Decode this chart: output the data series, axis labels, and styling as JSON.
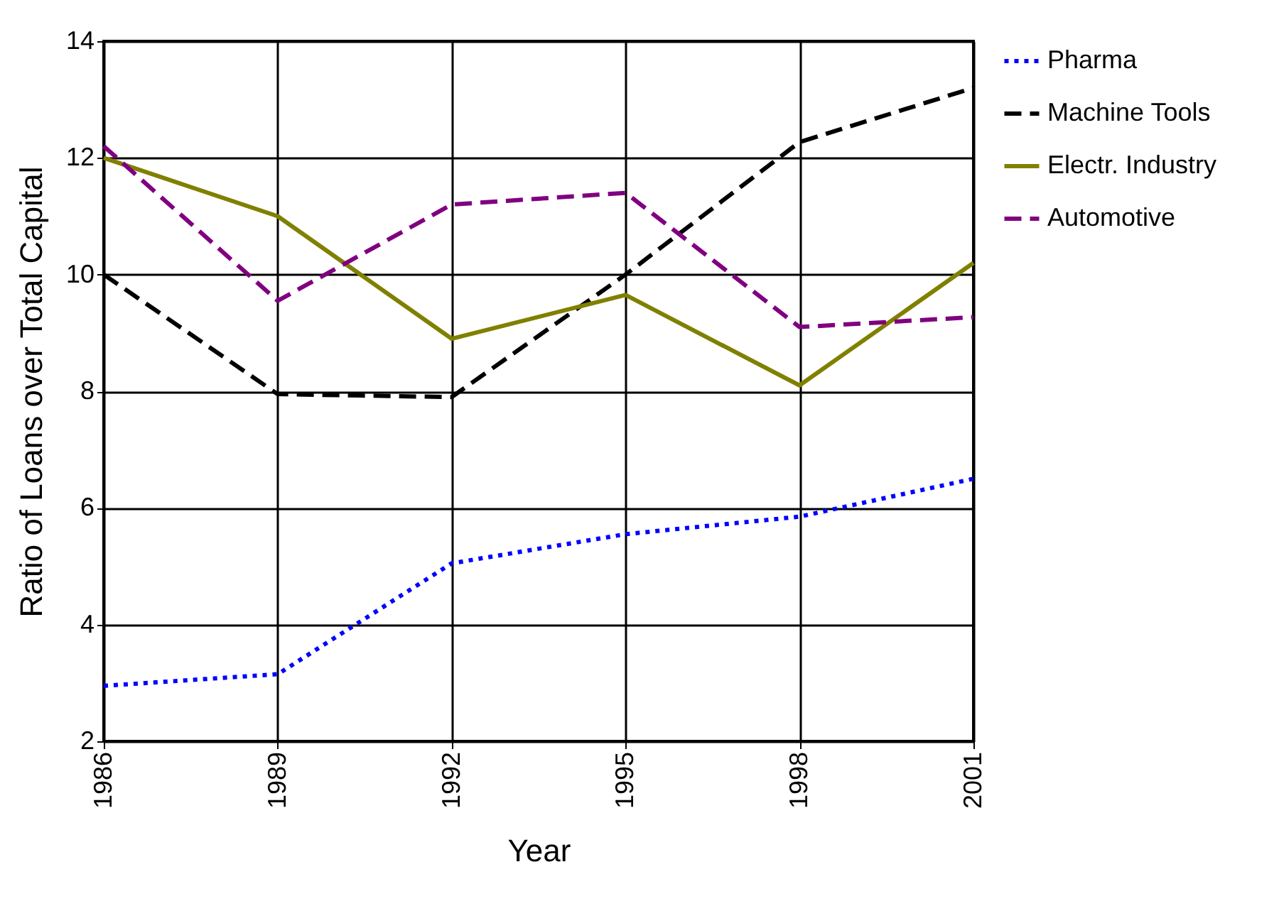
{
  "chart_data": {
    "type": "line",
    "xlabel": "Year",
    "ylabel": "Ratio of Loans over Total Capital",
    "x": [
      1986,
      1989,
      1992,
      1995,
      1998,
      2001
    ],
    "xlim": [
      1986,
      2001
    ],
    "xticks": [
      1986,
      1989,
      1992,
      1995,
      1998,
      2001
    ],
    "ylim": [
      2,
      14
    ],
    "yticks": [
      2,
      4,
      6,
      8,
      10,
      12,
      14
    ],
    "grid": true,
    "legend": "right",
    "marker": "none",
    "series": [
      {
        "name": "Pharma",
        "color": "#0000ff",
        "line_style": "dotted",
        "values": [
          2.95,
          3.15,
          5.05,
          5.55,
          5.85,
          6.5
        ]
      },
      {
        "name": "Machine Tools",
        "color": "#000000",
        "line_style": "dashed",
        "values": [
          10.0,
          7.95,
          7.9,
          10.0,
          12.27,
          13.2
        ]
      },
      {
        "name": "Electr. Industry",
        "color": "#808000",
        "line_style": "solid",
        "values": [
          12.0,
          11.0,
          8.9,
          9.65,
          8.1,
          10.2
        ]
      },
      {
        "name": "Automotive",
        "color": "#800080",
        "line_style": "dashed",
        "values": [
          12.2,
          9.55,
          11.2,
          11.4,
          9.1,
          9.27
        ]
      }
    ]
  }
}
